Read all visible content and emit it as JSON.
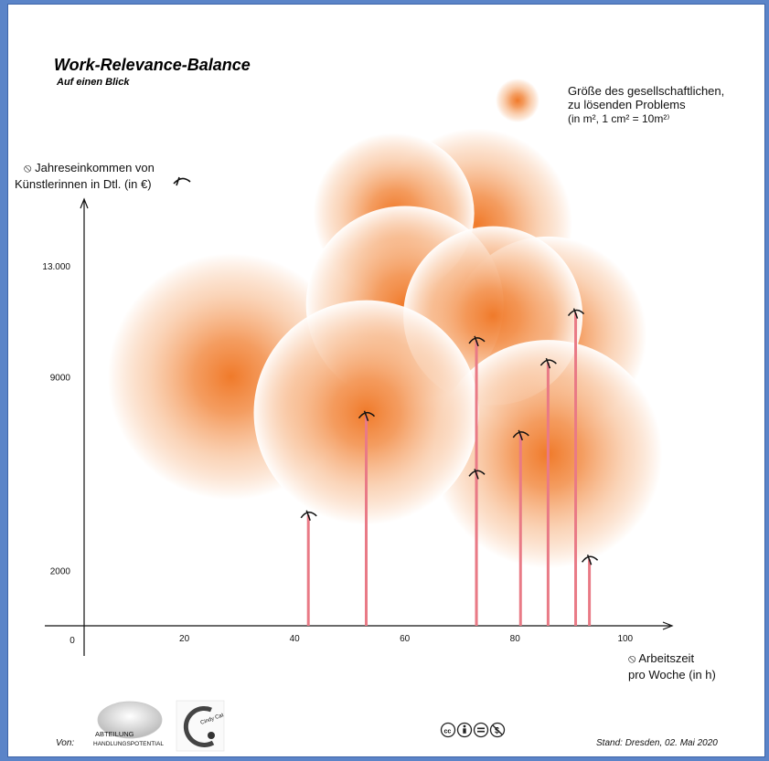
{
  "header": {
    "title": "Work-Relevance-Balance",
    "subtitle": "Auf einen Blick"
  },
  "legend": {
    "lines": [
      "Größe des gesellschaftlichen,",
      "zu lösenden Problems",
      "(in m², 1 cm² = 10m²⁾"
    ],
    "placement": "top-right"
  },
  "chart_data": {
    "type": "scatter",
    "xlabel": [
      "⦸ Arbeitszeit",
      "pro Woche (in h)"
    ],
    "ylabel": [
      "⦸ Jahreseinkommen von",
      "Künstlerinnen in Dtl. (in €)"
    ],
    "x_ticks": [
      {
        "value": 0,
        "label": "0"
      },
      {
        "value": 20,
        "label": "20"
      },
      {
        "value": 40,
        "label": "40"
      },
      {
        "value": 60,
        "label": "60"
      },
      {
        "value": 80,
        "label": "80"
      },
      {
        "value": 100,
        "label": "100"
      }
    ],
    "y_ticks": [
      {
        "value": 2000,
        "label": "2000"
      },
      {
        "value": 9000,
        "label": "9000"
      },
      {
        "value": 13000,
        "label": "13.000"
      }
    ],
    "xlim": [
      -2,
      108
    ],
    "ylim": [
      0,
      16500
    ],
    "grid": false,
    "bubble_color": "#f07a2a",
    "stem_color": "#e97a86",
    "bubbles": [
      {
        "x": 28.5,
        "y": 9000,
        "size": 135
      },
      {
        "x": 73,
        "y": 14500,
        "size": 105
      },
      {
        "x": 58,
        "y": 14900,
        "size": 88
      },
      {
        "x": 86,
        "y": 10500,
        "size": 108
      },
      {
        "x": 60,
        "y": 11600,
        "size": 108
      },
      {
        "x": 76,
        "y": 11200,
        "size": 98
      },
      {
        "x": 86,
        "y": 6200,
        "size": 125
      },
      {
        "x": 53,
        "y": 7700,
        "size": 123
      }
    ],
    "points": [
      {
        "x": 42.5,
        "y": 4000
      },
      {
        "x": 53,
        "y": 7600
      },
      {
        "x": 73,
        "y": 10300
      },
      {
        "x": 73,
        "y": 5500
      },
      {
        "x": 81,
        "y": 6900
      },
      {
        "x": 86,
        "y": 9500
      },
      {
        "x": 91,
        "y": 11300
      },
      {
        "x": 93.5,
        "y": 2400
      }
    ]
  },
  "footer": {
    "von_label": "Von:",
    "logo1_line1": "ABTEILUNG",
    "logo1_line2": "HANDLUNGSPOTENTIAL",
    "logo2_text": "Cindy Cat",
    "stand": "Stand: Dresden, 02. Mai 2020"
  }
}
